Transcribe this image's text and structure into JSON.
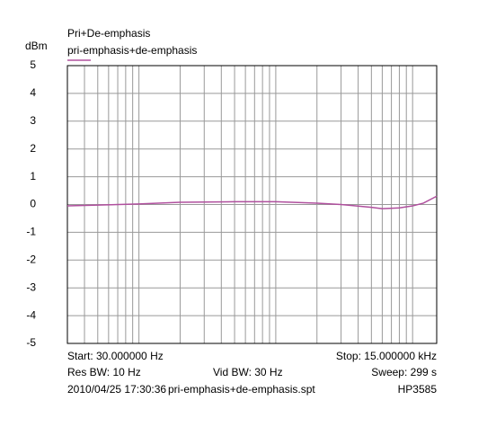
{
  "chart_data": {
    "type": "line",
    "title": "Pri+De-emphasis",
    "y_label": "dBm",
    "log_x": true,
    "grid": true,
    "xlim": [
      30,
      15000
    ],
    "xticks": [
      30,
      40,
      50,
      60,
      70,
      80,
      90,
      100,
      200,
      300,
      400,
      500,
      600,
      700,
      800,
      900,
      1000,
      2000,
      3000,
      4000,
      5000,
      6000,
      7000,
      8000,
      9000,
      10000
    ],
    "ylim": [
      -5,
      5
    ],
    "yticks": [
      -5,
      -4,
      -3,
      -2,
      -1,
      0,
      1,
      2,
      3,
      4,
      5
    ],
    "series": [
      {
        "name": "pri-emphasis+de-emphasis",
        "color": "#b0509e",
        "x": [
          30,
          50,
          100,
          200,
          500,
          1000,
          2000,
          3000,
          5000,
          6000,
          8000,
          10000,
          12000,
          15000
        ],
        "values": [
          -0.05,
          -0.02,
          0.02,
          0.08,
          0.1,
          0.1,
          0.05,
          0.0,
          -0.1,
          -0.15,
          -0.12,
          -0.05,
          0.05,
          0.3
        ]
      }
    ],
    "footer": {
      "start": "Start: 30.000000 Hz",
      "stop": "Stop: 15.000000 kHz",
      "res_bw": "Res BW: 10 Hz",
      "vid_bw": "Vid BW: 30 Hz",
      "sweep": "Sweep: 299 s",
      "date": "2010/04/25 17:30:36",
      "file": "pri-emphasis+de-emphasis.spt",
      "instrument": "HP3585"
    }
  }
}
